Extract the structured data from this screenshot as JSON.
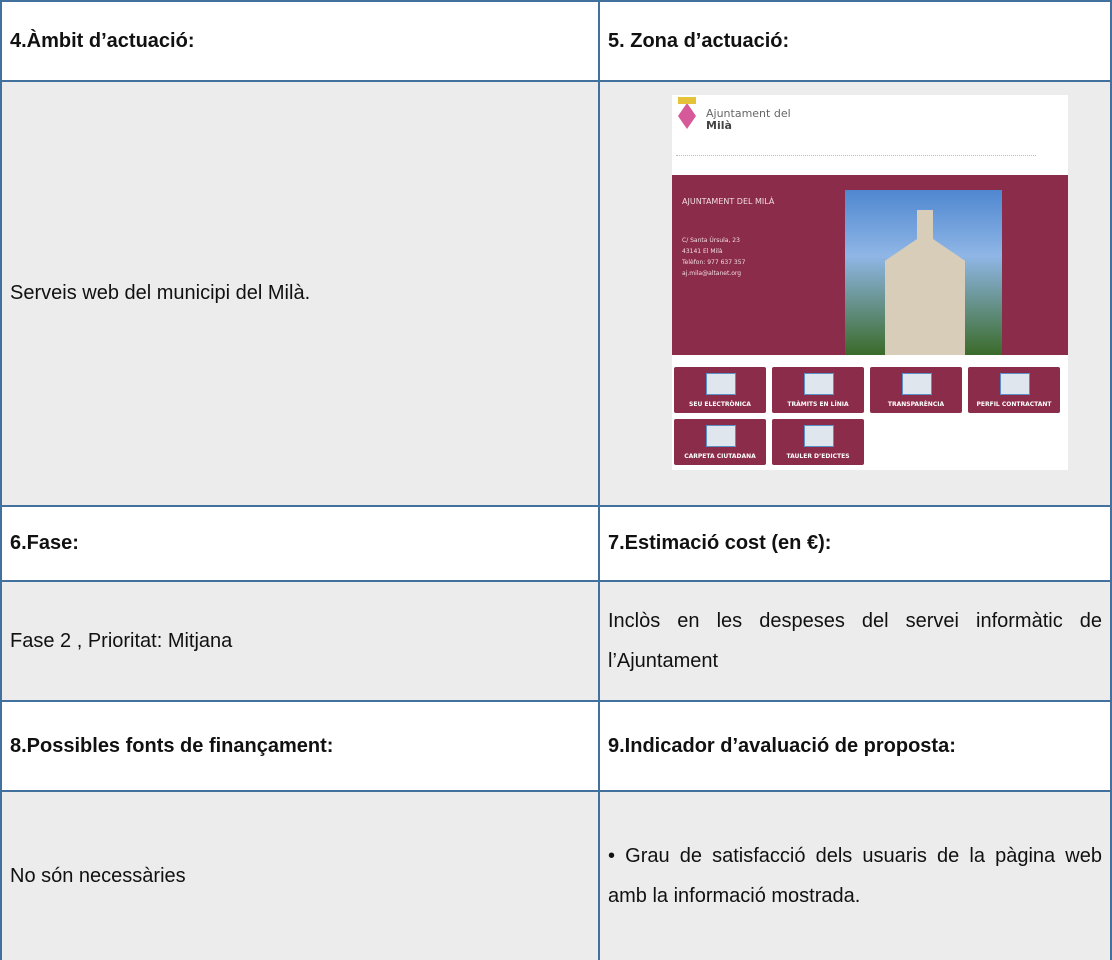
{
  "table": {
    "rows": [
      [
        "4.Àmbit d’actuació:",
        "5. Zona d’actuació:"
      ],
      [
        "Serveis web del municipi del Milà.",
        ""
      ],
      [
        "6.Fase:",
        "7.Estimació cost (en €):"
      ],
      [
        "Fase 2  , Prioritat: Mitjana",
        "Inclòs en les despeses del servei informàtic de l’Ajuntament"
      ],
      [
        "8.Possibles fonts de finançament:",
        "9.Indicador d’avaluació de proposta:"
      ],
      [
        "No són necessàries",
        "• Grau de satisfacció dels usuaris de la pàgina web amb la informació mostrada."
      ]
    ]
  },
  "screenshot": {
    "site_title": "Ajuntament del",
    "site_name": "Milà",
    "heading": "AJUNTAMENT DEL MILÀ",
    "address": [
      "C/ Santa Úrsula, 23",
      "43141 El Milà",
      "Telèfon: 977 637 357",
      "aj.mila@altanet.org"
    ],
    "buttons": [
      "SEU ELECTRÒNICA",
      "TRÀMITS EN LÍNIA",
      "TRANSPARÈNCIA",
      "PERFIL CONTRACTANT",
      "CARPETA CIUTADANA",
      "TAULER D’EDICTES"
    ]
  }
}
